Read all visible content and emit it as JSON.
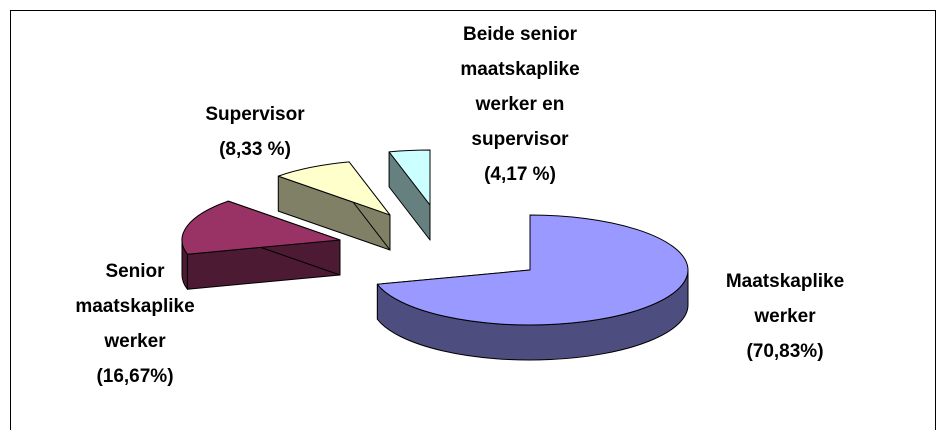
{
  "chart_data": {
    "type": "pie3d",
    "categories": [
      "Maatskaplike werker",
      "Senior maatskaplike werker",
      "Supervisor",
      "Beide senior maatskaplike werker en supervisor"
    ],
    "values": [
      70.83,
      16.67,
      8.33,
      4.17
    ],
    "value_labels": [
      "(70,83%)",
      "(16,67%)",
      "(8,33 %)",
      "(4,17 %)"
    ],
    "colors": [
      "#9999ff",
      "#993366",
      "#ffffcc",
      "#ccffff"
    ]
  }
}
